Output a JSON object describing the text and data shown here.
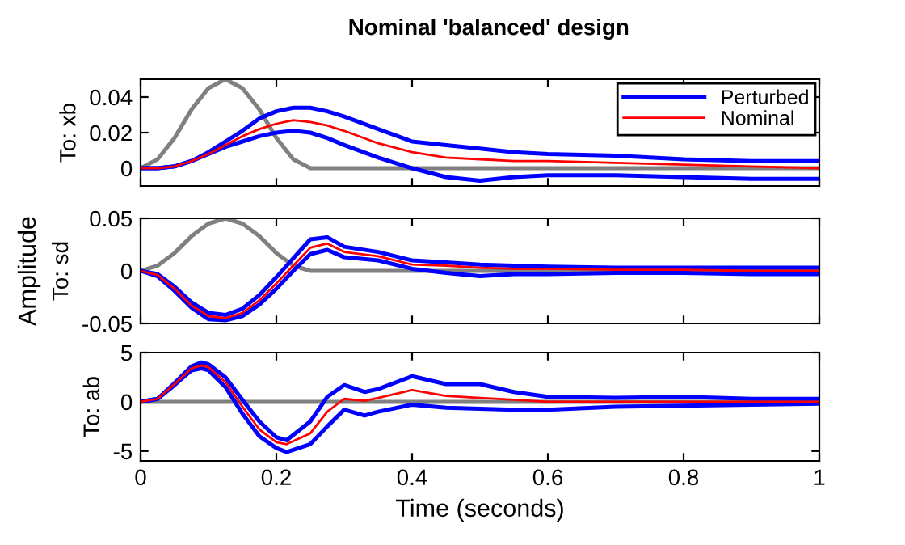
{
  "chart_data": [
    {
      "type": "line",
      "title": "Nominal 'balanced' design",
      "ylabel": "To: xb",
      "xlim": [
        0,
        1
      ],
      "xticks": [
        0,
        0.2,
        0.4,
        0.6,
        0.8,
        1
      ],
      "ylim": [
        -0.01,
        0.05
      ],
      "yticks": [
        0,
        0.02,
        0.04
      ],
      "tick_labels": "y",
      "legend": "top right",
      "grid": false,
      "x": [
        0,
        0.025,
        0.05,
        0.075,
        0.1,
        0.125,
        0.15,
        0.175,
        0.2,
        0.225,
        0.25,
        0.275,
        0.3,
        0.35,
        0.4,
        0.45,
        0.5,
        0.55,
        0.6,
        0.7,
        0.8,
        0.9,
        1.0
      ],
      "series": [
        {
          "color": "#808080",
          "values": [
            0,
            0.005,
            0.017,
            0.033,
            0.045,
            0.05,
            0.045,
            0.033,
            0.017,
            0.005,
            0,
            0,
            0,
            0,
            0,
            0,
            0,
            0,
            0,
            0,
            0,
            0,
            0
          ]
        },
        {
          "name": "Perturbed",
          "color": "#0000ff",
          "values": [
            0,
            0,
            0.001,
            0.004,
            0.009,
            0.015,
            0.021,
            0.028,
            0.032,
            0.034,
            0.034,
            0.032,
            0.029,
            0.022,
            0.015,
            0.013,
            0.011,
            0.009,
            0.008,
            0.007,
            0.005,
            0.004,
            0.004
          ]
        },
        {
          "color": "#0000ff",
          "values": [
            0,
            0,
            0.001,
            0.004,
            0.008,
            0.012,
            0.015,
            0.018,
            0.02,
            0.021,
            0.02,
            0.017,
            0.013,
            0.006,
            0.0,
            -0.005,
            -0.007,
            -0.005,
            -0.004,
            -0.004,
            -0.005,
            -0.006,
            -0.006
          ]
        },
        {
          "name": "Nominal",
          "color": "#ff0000",
          "values": [
            0,
            0,
            0.001,
            0.004,
            0.008,
            0.013,
            0.018,
            0.022,
            0.025,
            0.027,
            0.026,
            0.024,
            0.021,
            0.014,
            0.009,
            0.006,
            0.005,
            0.004,
            0.004,
            0.003,
            0.002,
            0.001,
            0
          ]
        }
      ]
    },
    {
      "type": "line",
      "ylabel": "To: sd",
      "annotations": [
        "Amplitude"
      ],
      "xlim": [
        0,
        1
      ],
      "xticks": [
        0,
        0.2,
        0.4,
        0.6,
        0.8,
        1
      ],
      "ylim": [
        -0.05,
        0.05
      ],
      "yticks": [
        -0.05,
        0,
        0.05
      ],
      "tick_labels": "y",
      "grid": false,
      "x": [
        0,
        0.025,
        0.05,
        0.075,
        0.1,
        0.125,
        0.15,
        0.175,
        0.2,
        0.225,
        0.25,
        0.275,
        0.3,
        0.35,
        0.4,
        0.45,
        0.5,
        0.55,
        0.6,
        0.7,
        0.8,
        0.9,
        1.0
      ],
      "series": [
        {
          "color": "#808080",
          "values": [
            0,
            0.005,
            0.017,
            0.033,
            0.045,
            0.05,
            0.045,
            0.033,
            0.017,
            0.005,
            0,
            0,
            0,
            0,
            0,
            0,
            0,
            0,
            0,
            0,
            0,
            0,
            0
          ]
        },
        {
          "color": "#0000ff",
          "values": [
            0,
            -0.003,
            -0.015,
            -0.03,
            -0.04,
            -0.042,
            -0.036,
            -0.023,
            -0.006,
            0.012,
            0.03,
            0.032,
            0.023,
            0.018,
            0.01,
            0.008,
            0.006,
            0.005,
            0.004,
            0.003,
            0.003,
            0.003,
            0.003
          ]
        },
        {
          "color": "#0000ff",
          "values": [
            0,
            -0.005,
            -0.019,
            -0.035,
            -0.046,
            -0.047,
            -0.043,
            -0.032,
            -0.017,
            0.0,
            0.016,
            0.02,
            0.013,
            0.01,
            0.002,
            -0.002,
            -0.005,
            -0.003,
            -0.003,
            -0.002,
            -0.002,
            -0.003,
            -0.003
          ]
        },
        {
          "color": "#ff0000",
          "values": [
            0,
            -0.004,
            -0.017,
            -0.033,
            -0.043,
            -0.045,
            -0.04,
            -0.028,
            -0.012,
            0.005,
            0.022,
            0.026,
            0.018,
            0.014,
            0.006,
            0.005,
            0.003,
            0.002,
            0.002,
            0.001,
            0.001,
            0,
            0
          ]
        }
      ]
    },
    {
      "type": "line",
      "ylabel": "To: ab",
      "xlabel": "Time (seconds)",
      "xlim": [
        0,
        1
      ],
      "xticks": [
        0,
        0.2,
        0.4,
        0.6,
        0.8,
        1
      ],
      "ylim": [
        -6,
        5
      ],
      "yticks": [
        -5,
        0,
        5
      ],
      "grid": false,
      "x": [
        0,
        0.025,
        0.05,
        0.075,
        0.09,
        0.1,
        0.125,
        0.15,
        0.175,
        0.2,
        0.215,
        0.25,
        0.275,
        0.3,
        0.33,
        0.35,
        0.4,
        0.45,
        0.5,
        0.55,
        0.6,
        0.7,
        0.8,
        0.9,
        1.0
      ],
      "series": [
        {
          "color": "#808080",
          "values": [
            0,
            0,
            0,
            0,
            0,
            0,
            0,
            0,
            0,
            0,
            0,
            0,
            0,
            0,
            0,
            0,
            0,
            0,
            0,
            0,
            0,
            0,
            0,
            0,
            0
          ]
        },
        {
          "color": "#0000ff",
          "values": [
            0,
            0.3,
            1.9,
            3.6,
            4.0,
            3.8,
            2.5,
            0.2,
            -2.0,
            -3.6,
            -3.9,
            -2.0,
            0.5,
            1.7,
            1.0,
            1.3,
            2.6,
            1.8,
            1.8,
            1.0,
            0.5,
            0.4,
            0.5,
            0.3,
            0.3
          ]
        },
        {
          "color": "#0000ff",
          "values": [
            0,
            0.3,
            1.7,
            3.2,
            3.4,
            3.2,
            1.5,
            -1.2,
            -3.5,
            -4.7,
            -5.1,
            -4.3,
            -2.5,
            -0.8,
            -1.4,
            -1.0,
            -0.3,
            -0.6,
            -0.7,
            -0.8,
            -0.8,
            -0.5,
            -0.4,
            -0.3,
            -0.2
          ]
        },
        {
          "color": "#ff0000",
          "values": [
            0,
            0.3,
            1.8,
            3.4,
            3.7,
            3.5,
            2.0,
            -0.5,
            -2.8,
            -4.1,
            -4.3,
            -3.2,
            -1.0,
            0.3,
            0.1,
            0.4,
            1.2,
            0.6,
            0.4,
            0.2,
            0,
            0,
            0,
            0,
            0
          ]
        }
      ]
    }
  ]
}
